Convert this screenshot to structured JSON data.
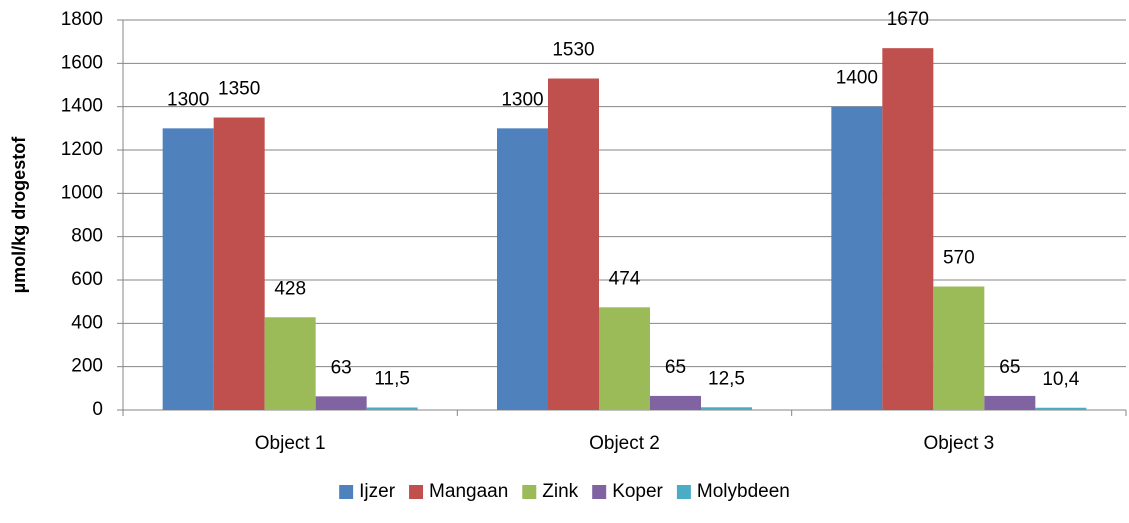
{
  "chart_data": {
    "type": "bar",
    "ylabel": "µmol/kg drogestof",
    "categories": [
      "Object 1",
      "Object 2",
      "Object 3"
    ],
    "series": [
      {
        "name": "Ijzer",
        "color": "#4f81bd",
        "values": [
          1300,
          1300,
          1400
        ]
      },
      {
        "name": "Mangaan",
        "color": "#c0504d",
        "values": [
          1350,
          1530,
          1670
        ]
      },
      {
        "name": "Zink",
        "color": "#9bbb59",
        "values": [
          428,
          474,
          570
        ]
      },
      {
        "name": "Koper",
        "color": "#8064a2",
        "values": [
          63,
          65,
          65
        ]
      },
      {
        "name": "Molybdeen",
        "color": "#4bacc6",
        "values": [
          11.5,
          12.5,
          10.4
        ],
        "value_labels": [
          "11,5",
          "12,5",
          "10,4"
        ]
      }
    ],
    "ylim": [
      0,
      1800
    ],
    "yticks": [
      0,
      200,
      400,
      600,
      800,
      1000,
      1200,
      1400,
      1600,
      1800
    ],
    "grid": true,
    "legend": "bottom"
  }
}
